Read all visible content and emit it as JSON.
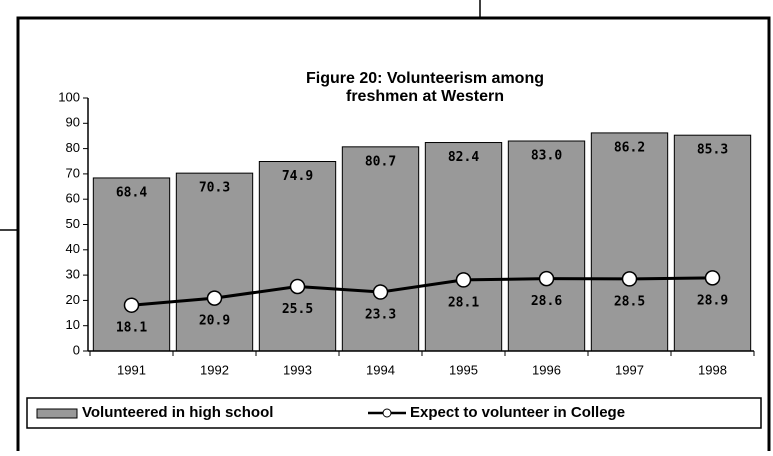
{
  "chart_data": {
    "type": "bar_line",
    "title": "Figure 20: Volunteerism among freshmen at Western",
    "categories": [
      "1991",
      "1992",
      "1993",
      "1994",
      "1995",
      "1996",
      "1997",
      "1998"
    ],
    "series": [
      {
        "name": "Volunteered in high school",
        "type": "bar",
        "color": "#999999",
        "values": [
          68.4,
          70.3,
          74.9,
          80.7,
          82.4,
          83.0,
          86.2,
          85.3
        ],
        "value_labels": [
          "68.4",
          "70.3",
          "74.9",
          "80.7",
          "82.4",
          "83.0",
          "86.2",
          "85.3"
        ]
      },
      {
        "name": "Expect to volunteer in College",
        "type": "line",
        "color": "#000000",
        "values": [
          18.1,
          20.9,
          25.5,
          23.3,
          28.1,
          28.6,
          28.5,
          28.9
        ],
        "value_labels": [
          "18.1",
          "20.9",
          "25.5",
          "23.3",
          "28.1",
          "28.6",
          "28.5",
          "28.9"
        ]
      }
    ],
    "ylim": [
      0,
      100
    ],
    "yticks": [
      0,
      10,
      20,
      30,
      40,
      50,
      60,
      70,
      80,
      90,
      100
    ],
    "legend": "bottom"
  }
}
